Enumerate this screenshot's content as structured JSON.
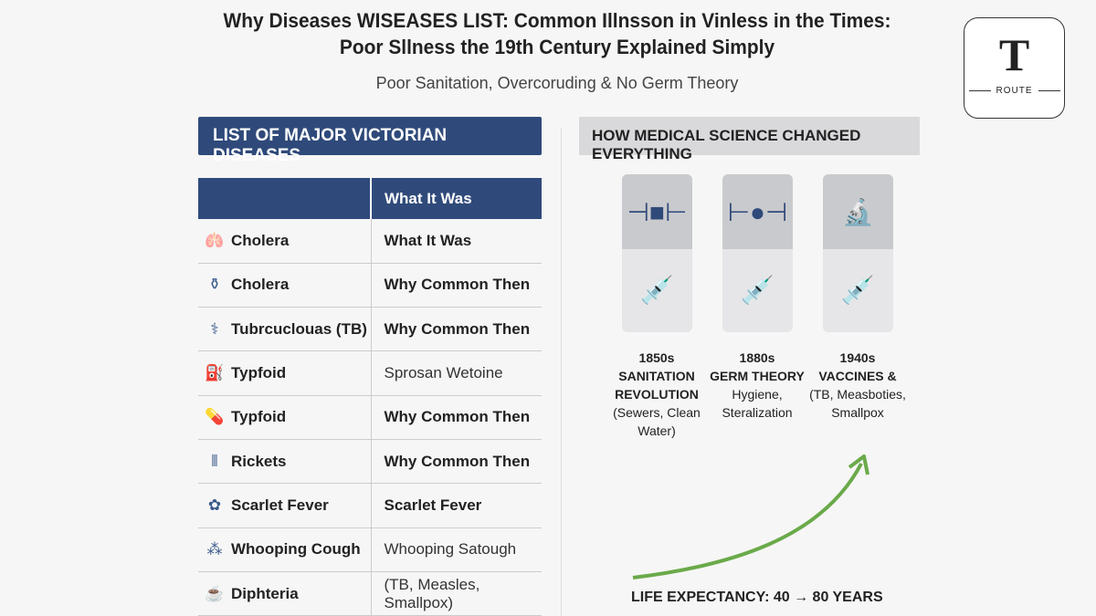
{
  "title": "Why Diseases WISEASES LIST: Common Illnsson in Vinless in the Times: Poor Sllness the 19th Century Explained Simply",
  "subtitle": "Poor Sanitation, Overcoruding & No Germ Theory",
  "logo": {
    "letter": "T",
    "word": "ROUTE"
  },
  "left_header": "LIST OF MAJOR VICTORIAN DISEASES",
  "right_header": "HOW MEDICAL SCIENCE CHANGED EVERYTHING",
  "table": {
    "headers": [
      "",
      "What It Was"
    ],
    "rows": [
      {
        "icon": "lungs-icon",
        "glyph": "🫁",
        "name": "Cholera",
        "desc": "What It Was",
        "light": false
      },
      {
        "icon": "bottle-icon",
        "glyph": "⚱",
        "name": "Cholera",
        "desc": "Why Common Then",
        "light": false
      },
      {
        "icon": "stethoscope-icon",
        "glyph": "⚕",
        "name": "Tubrcuclouas (TB)",
        "desc": "Why Common Then",
        "light": false
      },
      {
        "icon": "water-pump-icon",
        "glyph": "⛽",
        "name": "Typfoid",
        "desc": "Sprosan Wetoine",
        "light": true
      },
      {
        "icon": "pills-icon",
        "glyph": "💊",
        "name": "Typfoid",
        "desc": "Why Common Then",
        "light": false
      },
      {
        "icon": "bones-icon",
        "glyph": "⫴",
        "name": "Rickets",
        "desc": "Why Common Then",
        "light": false
      },
      {
        "icon": "virus-icon",
        "glyph": "✿",
        "name": "Scarlet Fever",
        "desc": "Scarlet Fever",
        "light": false
      },
      {
        "icon": "germs-icon",
        "glyph": "⁂",
        "name": "Whooping Cough",
        "desc": "Whooping Satough",
        "light": true
      },
      {
        "icon": "bowl-icon",
        "glyph": "☕",
        "name": "Diphteria",
        "desc": "(TB, Measles, Smallpox)",
        "light": true
      }
    ]
  },
  "timeline": [
    {
      "top_icon": "pipe-icon",
      "top_glyph": "⊣■⊢",
      "bottom_icon": "syringe-icon",
      "era": "1850s",
      "title": "SANITATION REVOLUTION",
      "detail": "(Sewers, Clean Water)"
    },
    {
      "top_icon": "pipe-icon",
      "top_glyph": "⊢●⊣",
      "bottom_icon": "syringe-icon",
      "era": "1880s",
      "title": "GERM THEORY",
      "detail": "Hygiene, Steralization"
    },
    {
      "top_icon": "microscope-icon",
      "top_glyph": "🔬",
      "bottom_icon": "syringe-icon",
      "era": "1940s",
      "title": "VACCINES &",
      "detail": "(TB, Measboties, Smallpox"
    }
  ],
  "life_expectancy": "LIFE EXPECTANCY: 40 → 80 YEARS",
  "colors": {
    "navy": "#2f4a7a",
    "arrow": "#6aaa4a"
  }
}
